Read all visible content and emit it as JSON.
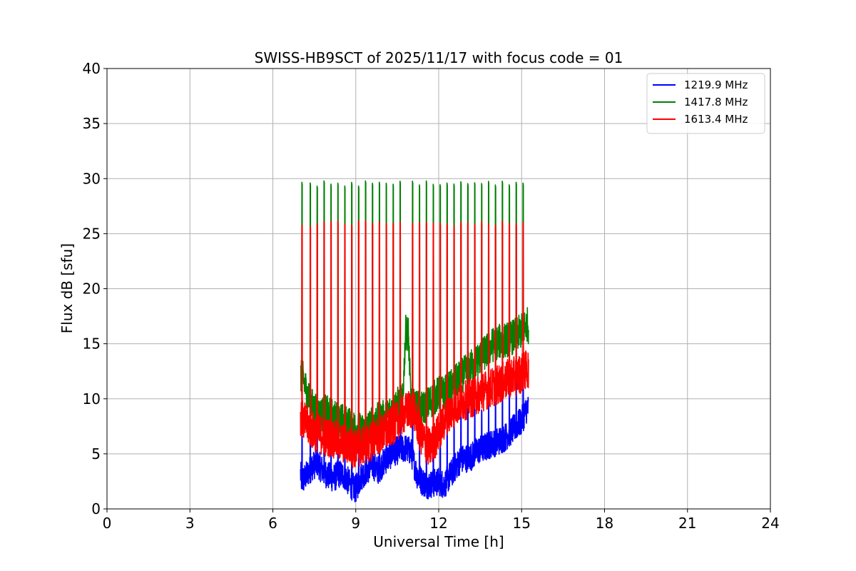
{
  "chart_data": {
    "type": "line",
    "title": "SWISS-HB9SCT of 2025/11/17 with focus code = 01",
    "xlabel": "Universal Time [h]",
    "ylabel": "Flux dB [sfu]",
    "xlim": [
      0,
      24
    ],
    "ylim": [
      0,
      40
    ],
    "xticks": [
      0,
      3,
      6,
      9,
      12,
      15,
      18,
      21,
      24
    ],
    "yticks": [
      0,
      5,
      10,
      15,
      20,
      25,
      30,
      35,
      40
    ],
    "xtick_labels": [
      "0",
      "3",
      "6",
      "9",
      "12",
      "15",
      "18",
      "21",
      "24"
    ],
    "ytick_labels": [
      "0",
      "5",
      "10",
      "15",
      "20",
      "25",
      "30",
      "35",
      "40"
    ],
    "grid": true,
    "legend_position": "top-right",
    "series": [
      {
        "name": "1219.9 MHz",
        "color": "#0000ff",
        "x": [
          7.0,
          7.05,
          7.2,
          7.4,
          7.6,
          7.8,
          8.0,
          8.2,
          8.4,
          8.6,
          8.8,
          9.0,
          9.2,
          9.4,
          9.6,
          9.8,
          10.0,
          10.2,
          10.4,
          10.6,
          10.8,
          11.0,
          11.2,
          11.4,
          11.6,
          11.8,
          12.0,
          12.2,
          12.4,
          12.6,
          12.8,
          13.0,
          13.2,
          13.4,
          13.6,
          13.8,
          14.0,
          14.2,
          14.4,
          14.6,
          14.8,
          15.0,
          15.2,
          15.25
        ],
        "y": [
          3.2,
          2.5,
          3.0,
          3.8,
          4.2,
          3.5,
          3.0,
          2.8,
          3.2,
          3.0,
          2.2,
          1.8,
          3.0,
          3.5,
          4.0,
          3.5,
          4.2,
          4.8,
          5.2,
          5.4,
          5.5,
          5.2,
          3.2,
          2.5,
          2.2,
          2.3,
          2.5,
          2.2,
          3.0,
          3.8,
          4.5,
          4.6,
          4.8,
          5.3,
          5.5,
          5.8,
          6.0,
          6.2,
          6.5,
          7.0,
          7.5,
          8.0,
          9.2,
          9.0
        ]
      },
      {
        "name": "1417.8 MHz",
        "color": "#008000",
        "x": [
          7.0,
          7.1,
          7.3,
          7.5,
          7.7,
          7.9,
          8.1,
          8.3,
          8.5,
          8.7,
          8.9,
          9.1,
          9.3,
          9.5,
          9.7,
          9.9,
          10.1,
          10.3,
          10.5,
          10.7,
          10.8,
          10.9,
          11.0,
          11.2,
          11.4,
          11.6,
          11.8,
          12.0,
          12.2,
          12.4,
          12.6,
          12.8,
          13.0,
          13.2,
          13.4,
          13.6,
          13.8,
          14.0,
          14.2,
          14.4,
          14.6,
          14.8,
          15.0,
          15.2,
          15.25
        ],
        "y": [
          12.0,
          11.8,
          10.0,
          9.0,
          8.5,
          8.8,
          8.5,
          8.2,
          8.0,
          7.8,
          7.5,
          7.2,
          7.0,
          7.5,
          8.0,
          8.2,
          8.4,
          9.0,
          9.5,
          9.8,
          16.0,
          16.0,
          9.5,
          9.2,
          9.0,
          9.5,
          10.0,
          10.5,
          10.5,
          11.0,
          11.5,
          12.0,
          12.5,
          13.0,
          13.5,
          14.0,
          14.5,
          15.0,
          15.2,
          15.3,
          15.5,
          15.8,
          16.2,
          16.8,
          16.5
        ]
      },
      {
        "name": "1613.4 MHz",
        "color": "#ff0000",
        "x": [
          7.0,
          7.1,
          7.3,
          7.5,
          7.7,
          7.9,
          8.1,
          8.3,
          8.5,
          8.7,
          8.9,
          9.1,
          9.3,
          9.5,
          9.7,
          9.9,
          10.1,
          10.3,
          10.5,
          10.7,
          10.9,
          11.1,
          11.3,
          11.5,
          11.7,
          11.9,
          12.1,
          12.3,
          12.5,
          12.7,
          12.9,
          13.1,
          13.3,
          13.5,
          13.7,
          13.9,
          14.1,
          14.3,
          14.5,
          14.7,
          14.9,
          15.1,
          15.25
        ],
        "y": [
          8.5,
          8.0,
          7.5,
          7.0,
          6.8,
          6.5,
          6.5,
          6.2,
          6.0,
          5.8,
          5.5,
          5.5,
          5.8,
          6.0,
          6.5,
          6.8,
          7.0,
          7.5,
          8.0,
          8.5,
          9.0,
          9.0,
          7.0,
          6.0,
          5.5,
          6.5,
          7.5,
          8.5,
          9.0,
          9.5,
          9.8,
          10.0,
          10.2,
          10.5,
          10.8,
          11.0,
          11.2,
          11.5,
          11.8,
          12.0,
          12.2,
          12.5,
          12.8
        ]
      }
    ],
    "spikes": {
      "description_free": true,
      "times": [
        7.05,
        7.35,
        7.6,
        7.85,
        8.1,
        8.35,
        8.6,
        8.85,
        9.1,
        9.35,
        9.6,
        9.85,
        10.1,
        10.35,
        10.6,
        11.05,
        11.3,
        11.55,
        11.8,
        12.05,
        12.3,
        12.55,
        12.8,
        13.05,
        13.3,
        13.55,
        13.8,
        14.05,
        14.3,
        14.55,
        14.8,
        15.05
      ],
      "green_peak": 29.8,
      "red_peak": 26.2,
      "blue_peak": 12.0
    }
  }
}
